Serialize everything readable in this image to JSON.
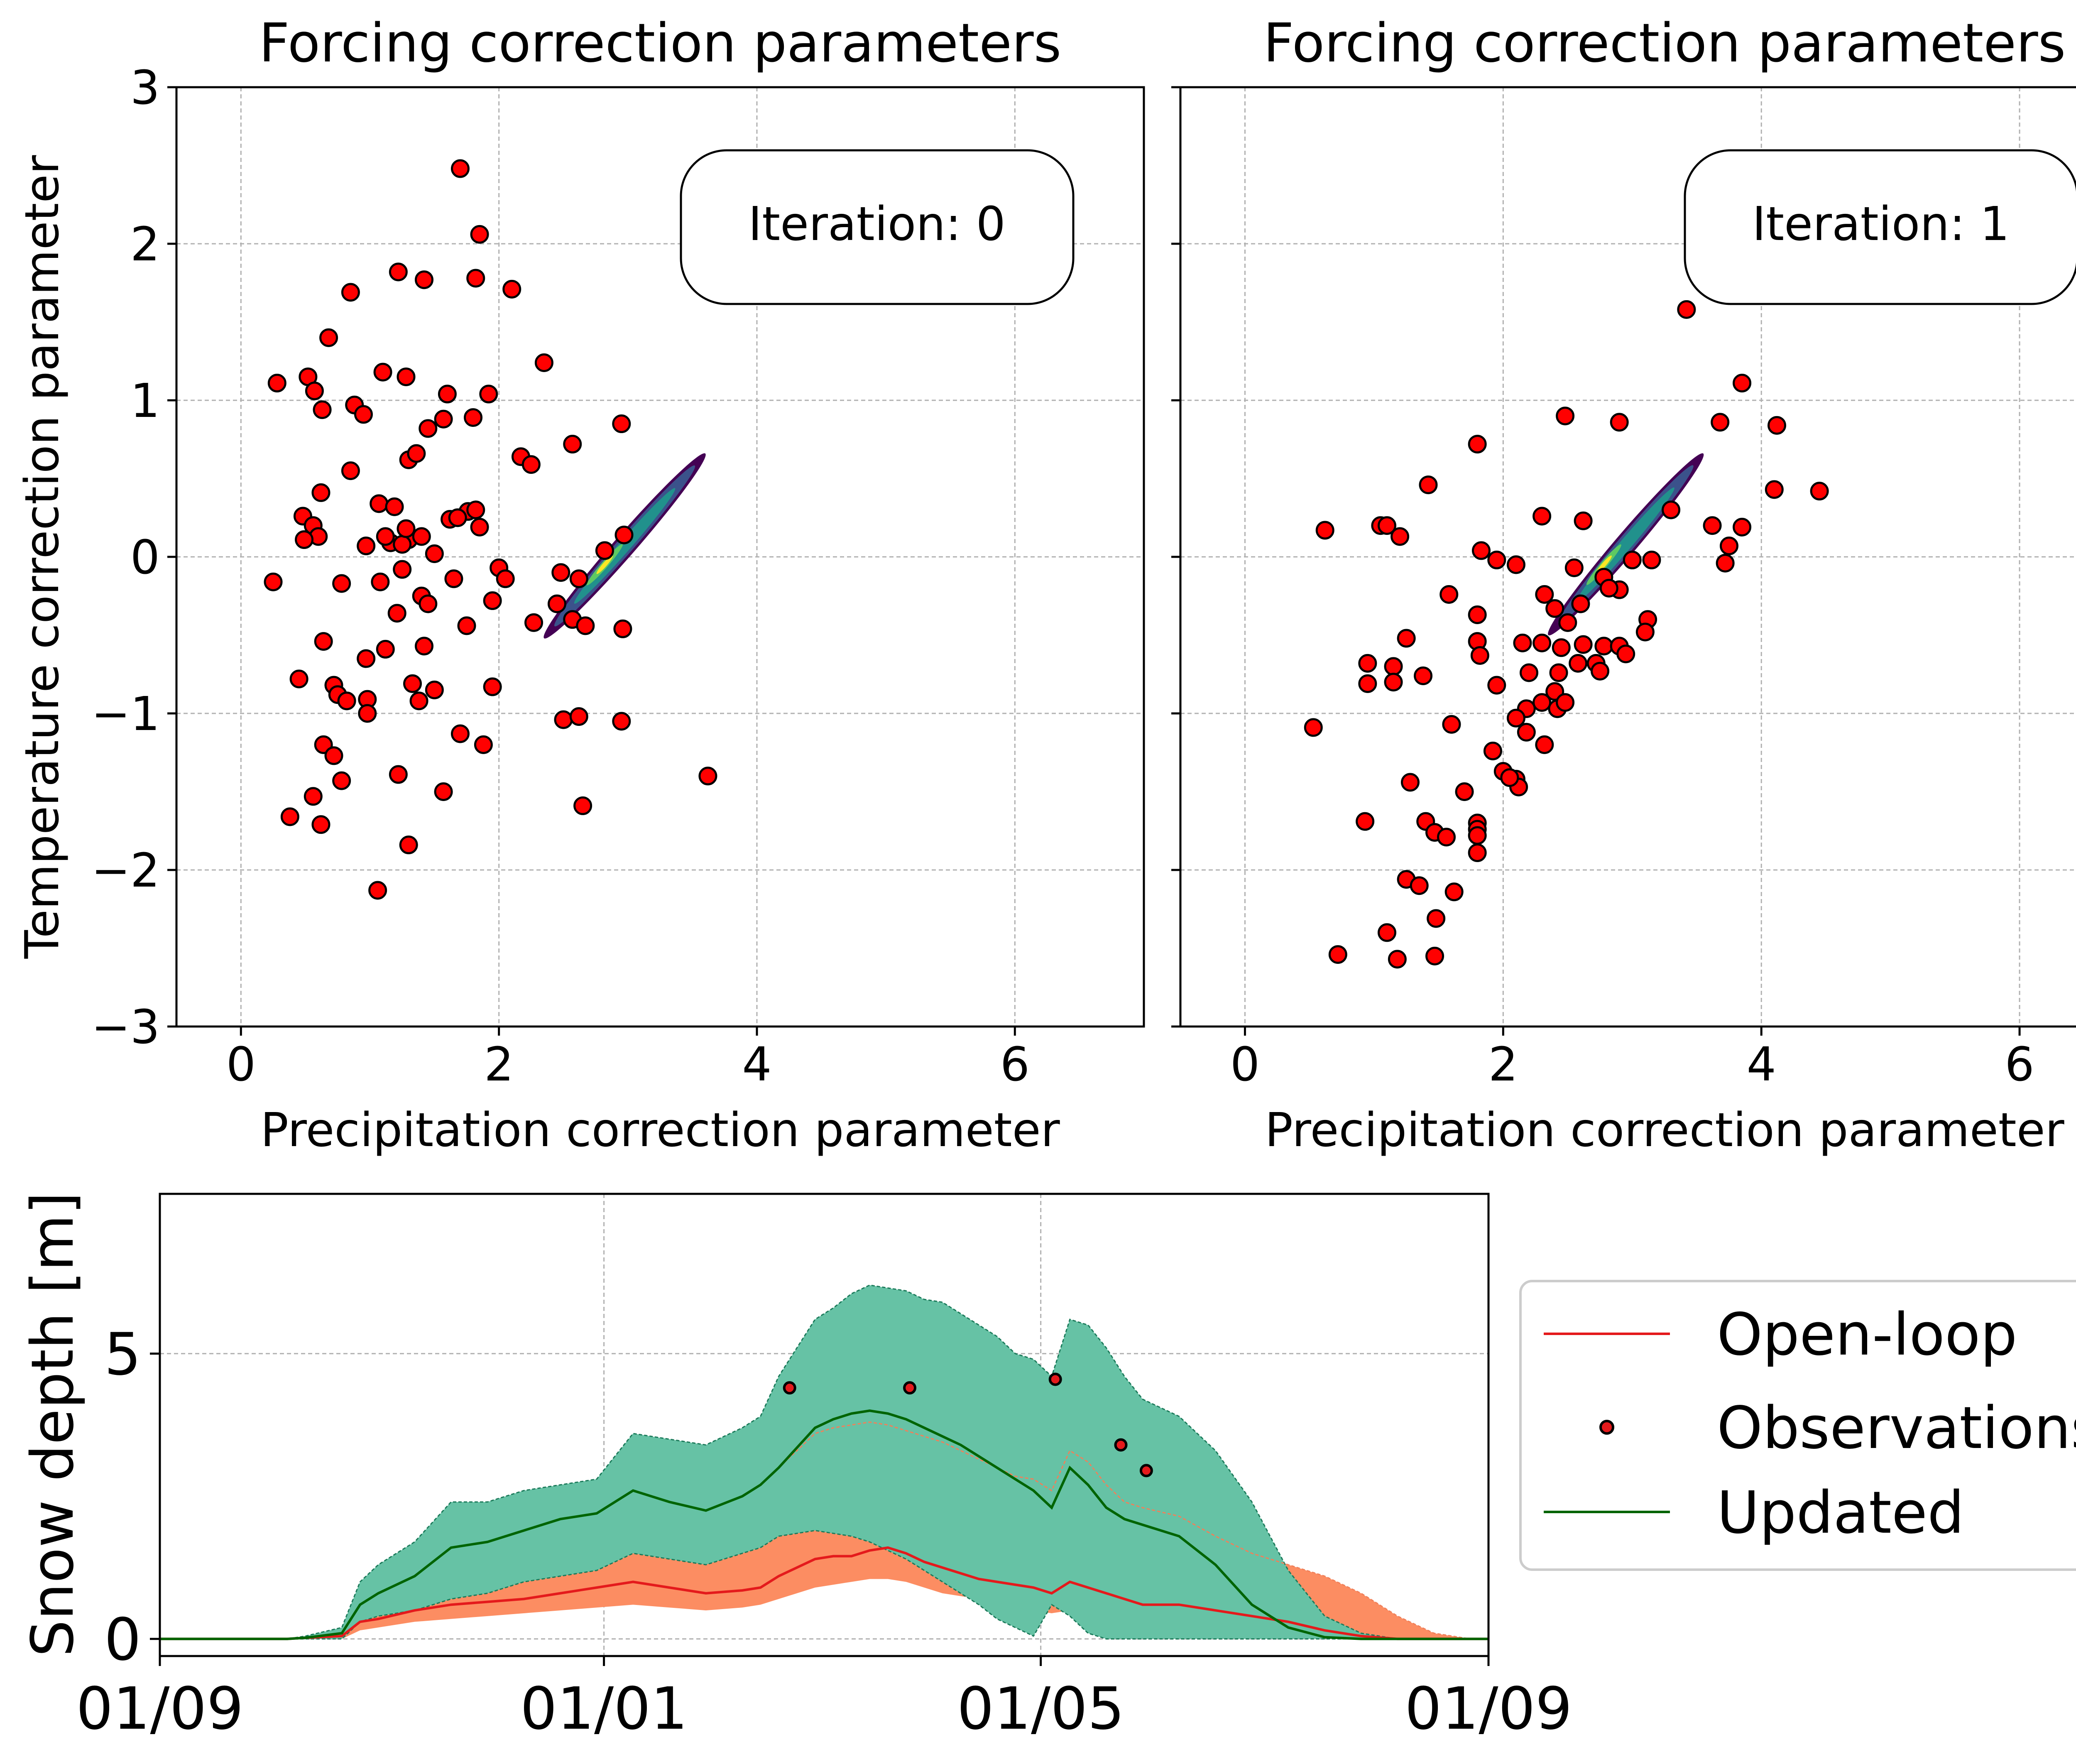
{
  "chart_data": [
    {
      "type": "scatter",
      "id": "iter0",
      "title": "Forcing correction parameters",
      "xlabel": "Precipitation correction parameter",
      "ylabel": "Temperature correction parameter",
      "xlim": [
        -0.5,
        7.0
      ],
      "ylim": [
        -3,
        3
      ],
      "xticks": [
        0,
        2,
        4,
        6
      ],
      "yticks": [
        -3,
        -2,
        -1,
        0,
        1,
        2,
        3
      ],
      "xtick_labels": [
        "0",
        "2",
        "4",
        "6"
      ],
      "ytick_labels": [
        "−3",
        "−2",
        "−1",
        "0",
        "1",
        "2",
        "3"
      ],
      "annotation": "Iteration: 0",
      "density_band": {
        "start": [
          2.35,
          -0.52
        ],
        "end": [
          3.6,
          0.66
        ],
        "peak": [
          2.82,
          -0.05
        ]
      },
      "points": [
        [
          1.7,
          2.48
        ],
        [
          1.85,
          2.06
        ],
        [
          1.22,
          1.82
        ],
        [
          1.42,
          1.77
        ],
        [
          1.82,
          1.78
        ],
        [
          2.1,
          1.71
        ],
        [
          0.85,
          1.69
        ],
        [
          0.68,
          1.4
        ],
        [
          2.35,
          1.24
        ],
        [
          1.1,
          1.18
        ],
        [
          0.28,
          1.11
        ],
        [
          0.52,
          1.15
        ],
        [
          1.28,
          1.15
        ],
        [
          0.57,
          1.06
        ],
        [
          1.6,
          1.04
        ],
        [
          1.92,
          1.04
        ],
        [
          0.88,
          0.97
        ],
        [
          0.63,
          0.94
        ],
        [
          0.95,
          0.91
        ],
        [
          1.57,
          0.88
        ],
        [
          1.8,
          0.89
        ],
        [
          1.45,
          0.82
        ],
        [
          2.95,
          0.85
        ],
        [
          2.57,
          0.72
        ],
        [
          1.3,
          0.62
        ],
        [
          1.36,
          0.66
        ],
        [
          2.17,
          0.64
        ],
        [
          2.25,
          0.59
        ],
        [
          0.85,
          0.55
        ],
        [
          0.62,
          0.41
        ],
        [
          1.07,
          0.34
        ],
        [
          1.19,
          0.32
        ],
        [
          1.62,
          0.24
        ],
        [
          0.48,
          0.26
        ],
        [
          1.76,
          0.29
        ],
        [
          1.82,
          0.3
        ],
        [
          1.68,
          0.25
        ],
        [
          0.56,
          0.2
        ],
        [
          0.6,
          0.13
        ],
        [
          0.49,
          0.11
        ],
        [
          1.16,
          0.09
        ],
        [
          1.12,
          0.13
        ],
        [
          1.3,
          0.11
        ],
        [
          1.4,
          0.13
        ],
        [
          1.25,
          0.08
        ],
        [
          1.85,
          0.19
        ],
        [
          0.97,
          0.07
        ],
        [
          1.5,
          0.02
        ],
        [
          1.28,
          0.18
        ],
        [
          2.0,
          -0.07
        ],
        [
          2.05,
          -0.14
        ],
        [
          2.48,
          -0.1
        ],
        [
          2.62,
          -0.14
        ],
        [
          2.97,
          0.14
        ],
        [
          0.25,
          -0.16
        ],
        [
          0.78,
          -0.17
        ],
        [
          1.08,
          -0.16
        ],
        [
          1.25,
          -0.08
        ],
        [
          1.65,
          -0.14
        ],
        [
          1.4,
          -0.25
        ],
        [
          1.45,
          -0.3
        ],
        [
          1.21,
          -0.36
        ],
        [
          1.95,
          -0.28
        ],
        [
          2.27,
          -0.42
        ],
        [
          2.57,
          -0.4
        ],
        [
          2.67,
          -0.44
        ],
        [
          2.96,
          -0.46
        ],
        [
          0.64,
          -0.54
        ],
        [
          1.42,
          -0.57
        ],
        [
          1.12,
          -0.59
        ],
        [
          0.97,
          -0.65
        ],
        [
          1.75,
          -0.44
        ],
        [
          0.45,
          -0.78
        ],
        [
          0.72,
          -0.82
        ],
        [
          0.75,
          -0.88
        ],
        [
          0.98,
          -0.91
        ],
        [
          0.82,
          -0.92
        ],
        [
          1.33,
          -0.81
        ],
        [
          1.38,
          -0.92
        ],
        [
          1.5,
          -0.85
        ],
        [
          1.95,
          -0.83
        ],
        [
          0.98,
          -1.0
        ],
        [
          1.7,
          -1.13
        ],
        [
          1.88,
          -1.2
        ],
        [
          0.64,
          -1.2
        ],
        [
          0.72,
          -1.27
        ],
        [
          0.78,
          -1.43
        ],
        [
          2.5,
          -1.04
        ],
        [
          2.62,
          -1.02
        ],
        [
          2.95,
          -1.05
        ],
        [
          1.22,
          -1.39
        ],
        [
          1.57,
          -1.5
        ],
        [
          0.56,
          -1.53
        ],
        [
          0.38,
          -1.66
        ],
        [
          0.62,
          -1.71
        ],
        [
          2.65,
          -1.59
        ],
        [
          3.62,
          -1.4
        ],
        [
          1.3,
          -1.84
        ],
        [
          1.06,
          -2.13
        ],
        [
          2.45,
          -0.3
        ],
        [
          2.82,
          0.04
        ]
      ]
    },
    {
      "type": "scatter",
      "id": "iter1",
      "title": "Forcing correction parameters",
      "xlabel": "Precipitation correction parameter",
      "ylabel": "",
      "xlim": [
        -0.5,
        7.0
      ],
      "ylim": [
        -3,
        3
      ],
      "xticks": [
        0,
        2,
        4,
        6
      ],
      "xtick_labels": [
        "0",
        "2",
        "4",
        "6"
      ],
      "annotation": "Iteration: 1",
      "density_band": {
        "start": [
          2.35,
          -0.5
        ],
        "end": [
          3.55,
          0.66
        ],
        "peak": [
          2.78,
          -0.05
        ]
      },
      "points": [
        [
          3.42,
          1.58
        ],
        [
          3.85,
          1.11
        ],
        [
          4.12,
          0.84
        ],
        [
          3.68,
          0.86
        ],
        [
          2.48,
          0.9
        ],
        [
          2.9,
          0.86
        ],
        [
          1.8,
          0.72
        ],
        [
          1.42,
          0.46
        ],
        [
          4.1,
          0.43
        ],
        [
          4.45,
          0.42
        ],
        [
          0.62,
          0.17
        ],
        [
          1.05,
          0.2
        ],
        [
          1.1,
          0.2
        ],
        [
          1.2,
          0.13
        ],
        [
          2.62,
          0.23
        ],
        [
          2.3,
          0.26
        ],
        [
          3.3,
          0.3
        ],
        [
          3.62,
          0.2
        ],
        [
          3.85,
          0.19
        ],
        [
          1.83,
          0.04
        ],
        [
          1.95,
          -0.02
        ],
        [
          2.1,
          -0.05
        ],
        [
          3.0,
          -0.02
        ],
        [
          3.75,
          0.07
        ],
        [
          3.72,
          -0.04
        ],
        [
          3.15,
          -0.02
        ],
        [
          2.55,
          -0.07
        ],
        [
          2.9,
          -0.21
        ],
        [
          2.78,
          -0.13
        ],
        [
          3.12,
          -0.4
        ],
        [
          1.58,
          -0.24
        ],
        [
          2.32,
          -0.24
        ],
        [
          2.6,
          -0.3
        ],
        [
          2.82,
          -0.2
        ],
        [
          1.8,
          -0.37
        ],
        [
          2.4,
          -0.33
        ],
        [
          2.5,
          -0.42
        ],
        [
          1.25,
          -0.52
        ],
        [
          2.15,
          -0.55
        ],
        [
          2.3,
          -0.55
        ],
        [
          1.8,
          -0.54
        ],
        [
          1.82,
          -0.63
        ],
        [
          2.62,
          -0.56
        ],
        [
          2.45,
          -0.58
        ],
        [
          2.78,
          -0.57
        ],
        [
          2.9,
          -0.57
        ],
        [
          3.1,
          -0.48
        ],
        [
          2.72,
          -0.68
        ],
        [
          2.58,
          -0.68
        ],
        [
          2.75,
          -0.73
        ],
        [
          2.95,
          -0.62
        ],
        [
          0.95,
          -0.68
        ],
        [
          1.15,
          -0.7
        ],
        [
          1.15,
          -0.8
        ],
        [
          0.95,
          -0.81
        ],
        [
          1.38,
          -0.76
        ],
        [
          1.95,
          -0.82
        ],
        [
          2.2,
          -0.74
        ],
        [
          2.43,
          -0.74
        ],
        [
          2.4,
          -0.86
        ],
        [
          2.3,
          -0.93
        ],
        [
          2.42,
          -0.97
        ],
        [
          2.48,
          -0.93
        ],
        [
          2.18,
          -0.97
        ],
        [
          2.1,
          -1.03
        ],
        [
          0.53,
          -1.09
        ],
        [
          1.6,
          -1.07
        ],
        [
          2.18,
          -1.12
        ],
        [
          2.32,
          -1.2
        ],
        [
          1.92,
          -1.24
        ],
        [
          2.0,
          -1.37
        ],
        [
          2.1,
          -1.42
        ],
        [
          2.12,
          -1.47
        ],
        [
          2.05,
          -1.41
        ],
        [
          1.28,
          -1.44
        ],
        [
          1.7,
          -1.5
        ],
        [
          0.93,
          -1.69
        ],
        [
          1.4,
          -1.69
        ],
        [
          1.47,
          -1.76
        ],
        [
          1.56,
          -1.79
        ],
        [
          1.8,
          -1.7
        ],
        [
          1.8,
          -1.74
        ],
        [
          1.8,
          -1.78
        ],
        [
          1.8,
          -1.89
        ],
        [
          1.25,
          -2.06
        ],
        [
          1.35,
          -2.1
        ],
        [
          1.62,
          -2.14
        ],
        [
          1.48,
          -2.31
        ],
        [
          1.1,
          -2.4
        ],
        [
          0.72,
          -2.54
        ],
        [
          1.18,
          -2.57
        ],
        [
          1.47,
          -2.55
        ]
      ]
    },
    {
      "type": "area",
      "id": "snow",
      "ylabel": "Snow depth [m]",
      "xlim": [
        0,
        365
      ],
      "ylim": [
        -0.3,
        7.8
      ],
      "xticks": [
        0,
        122,
        242,
        365
      ],
      "xtick_labels": [
        "01/09",
        "01/01",
        "01/05",
        "01/09"
      ],
      "yticks": [
        0,
        5
      ],
      "ytick_labels": [
        "0",
        "5"
      ],
      "x": [
        0,
        35,
        40,
        50,
        55,
        60,
        70,
        80,
        90,
        100,
        110,
        120,
        130,
        140,
        150,
        160,
        165,
        170,
        180,
        185,
        190,
        195,
        200,
        205,
        210,
        215,
        220,
        225,
        230,
        235,
        240,
        245,
        250,
        255,
        260,
        265,
        270,
        280,
        290,
        300,
        310,
        320,
        330,
        340,
        350,
        360,
        365
      ],
      "series": [
        {
          "name": "Updated upper",
          "values": [
            0,
            0,
            0.05,
            0.2,
            1.0,
            1.3,
            1.7,
            2.4,
            2.4,
            2.6,
            2.7,
            2.8,
            3.6,
            3.5,
            3.4,
            3.7,
            3.9,
            4.6,
            5.6,
            5.8,
            6.05,
            6.2,
            6.15,
            6.1,
            5.95,
            5.9,
            5.7,
            5.5,
            5.3,
            5.0,
            4.9,
            4.6,
            5.6,
            5.5,
            5.1,
            4.6,
            4.2,
            3.9,
            3.3,
            2.4,
            1.2,
            0.4,
            0.1,
            0,
            0,
            0,
            0
          ]
        },
        {
          "name": "Updated lower",
          "values": [
            0,
            0,
            0,
            0,
            0.3,
            0.4,
            0.5,
            0.7,
            0.8,
            1.0,
            1.1,
            1.2,
            1.5,
            1.4,
            1.3,
            1.5,
            1.6,
            1.8,
            1.9,
            1.85,
            1.8,
            1.7,
            1.55,
            1.4,
            1.2,
            1.0,
            0.8,
            0.6,
            0.35,
            0.2,
            0.05,
            0.6,
            0.4,
            0.1,
            0,
            0,
            0,
            0,
            0,
            0,
            0,
            0,
            0,
            0,
            0,
            0,
            0
          ]
        },
        {
          "name": "Updated",
          "values": [
            0,
            0,
            0.02,
            0.1,
            0.6,
            0.8,
            1.1,
            1.6,
            1.7,
            1.9,
            2.1,
            2.2,
            2.6,
            2.4,
            2.25,
            2.5,
            2.7,
            3.0,
            3.7,
            3.85,
            3.95,
            4.0,
            3.95,
            3.85,
            3.7,
            3.55,
            3.4,
            3.2,
            3.0,
            2.8,
            2.6,
            2.3,
            3.0,
            2.7,
            2.3,
            2.1,
            2.0,
            1.8,
            1.3,
            0.6,
            0.2,
            0.03,
            0,
            0,
            0,
            0,
            0
          ]
        },
        {
          "name": "Open-loop",
          "values": [
            0,
            0,
            0.02,
            0.05,
            0.3,
            0.35,
            0.5,
            0.6,
            0.65,
            0.7,
            0.8,
            0.9,
            1.0,
            0.9,
            0.8,
            0.85,
            0.9,
            1.1,
            1.4,
            1.45,
            1.45,
            1.55,
            1.6,
            1.5,
            1.35,
            1.25,
            1.15,
            1.05,
            1.0,
            0.95,
            0.9,
            0.8,
            1.0,
            0.9,
            0.8,
            0.7,
            0.6,
            0.6,
            0.5,
            0.4,
            0.3,
            0.15,
            0.05,
            0,
            0,
            0,
            0
          ]
        },
        {
          "name": "Open-loop upper",
          "values": [
            0,
            0,
            0.03,
            0.1,
            0.6,
            0.8,
            1.1,
            1.6,
            1.7,
            1.9,
            2.1,
            2.2,
            2.6,
            2.4,
            2.25,
            2.5,
            2.7,
            3.0,
            3.6,
            3.7,
            3.75,
            3.8,
            3.75,
            3.65,
            3.55,
            3.45,
            3.3,
            3.15,
            3.0,
            2.85,
            2.8,
            2.6,
            3.3,
            3.1,
            2.7,
            2.4,
            2.3,
            2.15,
            1.8,
            1.5,
            1.3,
            1.1,
            0.8,
            0.4,
            0.1,
            0,
            0
          ]
        },
        {
          "name": "Open-loop lower",
          "values": [
            0,
            0,
            0,
            0,
            0.15,
            0.2,
            0.3,
            0.35,
            0.4,
            0.45,
            0.5,
            0.55,
            0.6,
            0.55,
            0.5,
            0.55,
            0.6,
            0.7,
            0.9,
            0.95,
            1.0,
            1.05,
            1.05,
            1.0,
            0.9,
            0.8,
            0.75,
            0.7,
            0.6,
            0.55,
            0.5,
            0.45,
            0.5,
            0.45,
            0.4,
            0.35,
            0.3,
            0.3,
            0.25,
            0.2,
            0.15,
            0.1,
            0.05,
            0,
            0,
            0,
            0
          ]
        }
      ],
      "observations": [
        [
          173,
          4.4
        ],
        [
          206,
          4.4
        ],
        [
          246,
          4.55
        ],
        [
          264,
          3.4
        ],
        [
          271,
          2.95
        ]
      ],
      "legend": {
        "position": "right",
        "entries": [
          "Open-loop",
          "Observations",
          "Updated"
        ]
      },
      "colors": {
        "open_loop": "#e41a1c",
        "open_loop_fill": "#fc8d62",
        "updated": "#006400",
        "updated_fill": "#66c2a5",
        "obs": "#e41a1c"
      }
    }
  ]
}
